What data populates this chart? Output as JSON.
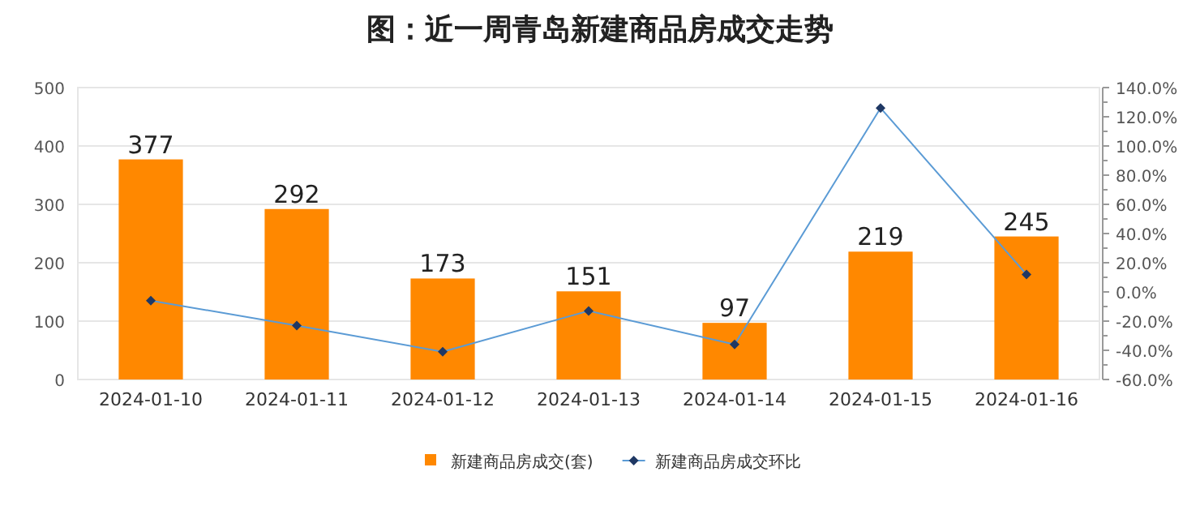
{
  "chart_data": {
    "type": "bar",
    "title": "图：近一周青岛新建商品房成交走势",
    "categories": [
      "2024-01-10",
      "2024-01-11",
      "2024-01-12",
      "2024-01-13",
      "2024-01-14",
      "2024-01-15",
      "2024-01-16"
    ],
    "series": [
      {
        "name": "新建商品房成交(套)",
        "color": "#ff8800",
        "values": [
          377,
          292,
          173,
          151,
          97,
          219,
          245
        ],
        "value_labels": [
          "377",
          "292",
          "173",
          "151",
          "97",
          "219",
          "245"
        ]
      },
      {
        "name": "新建商品房成交环比",
        "type": "line",
        "axis": "y2",
        "color": "#5b9bd5",
        "marker": "diamond",
        "values": [
          -6,
          -23,
          -41,
          -13,
          -36,
          126,
          12
        ]
      }
    ],
    "ylim": [
      0,
      500
    ],
    "yticks": [
      0,
      100,
      200,
      300,
      400,
      500
    ],
    "y2lim": [
      -60,
      140
    ],
    "y2ticks": [
      {
        "value": -60,
        "label": "-60.0%"
      },
      {
        "value": -40,
        "label": "-40.0%"
      },
      {
        "value": -20,
        "label": "-20.0%"
      },
      {
        "value": 0,
        "label": "0.0%"
      },
      {
        "value": 20,
        "label": "20.0%"
      },
      {
        "value": 40,
        "label": "40.0%"
      },
      {
        "value": 60,
        "label": "60.0%"
      },
      {
        "value": 80,
        "label": "80.0%"
      },
      {
        "value": 100,
        "label": "100.0%"
      },
      {
        "value": 120,
        "label": "120.0%"
      },
      {
        "value": 140,
        "label": "140.0%"
      }
    ],
    "grid": "y",
    "legend": "bottom"
  }
}
